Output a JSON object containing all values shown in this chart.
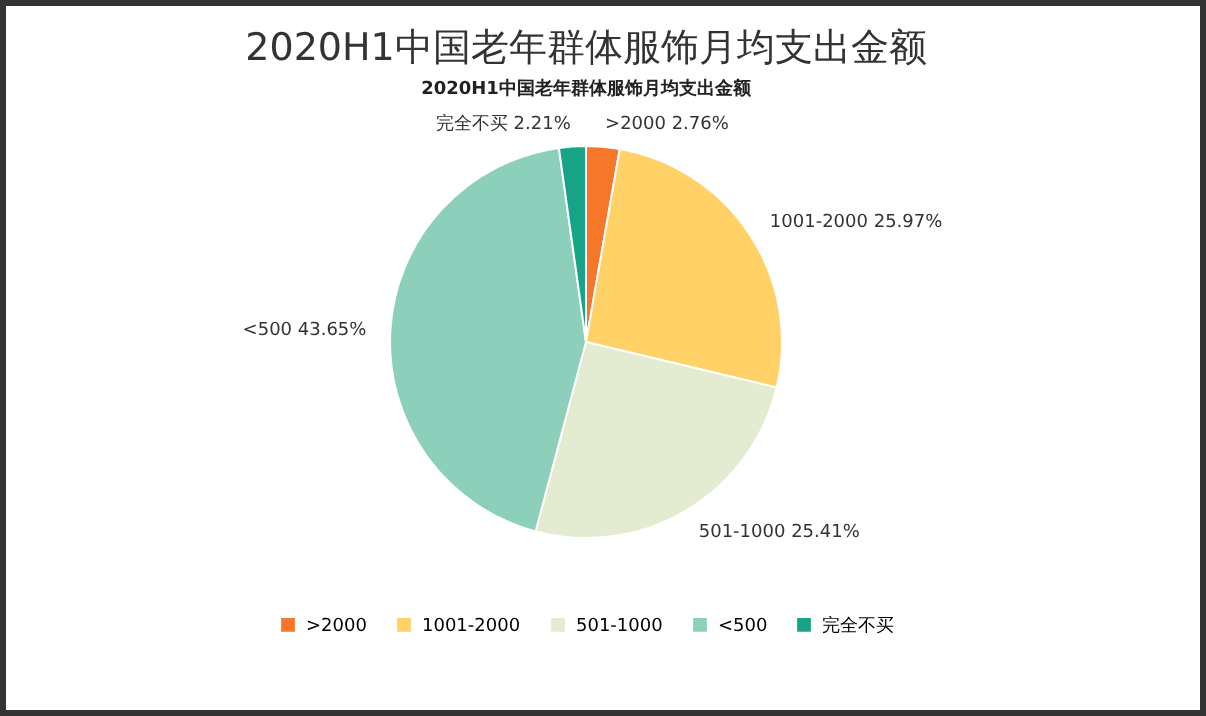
{
  "chart_data": {
    "type": "pie",
    "title": "2020H1中国老年群体服饰月均支出金额",
    "subtitle": "2020H1中国老年群体服饰月均支出金额",
    "categories": [
      ">2000",
      "1001-2000",
      "501-1000",
      "<500",
      "完全不买"
    ],
    "values": [
      2.76,
      25.97,
      25.41,
      43.65,
      2.21
    ],
    "value_labels": [
      "2.76%",
      "25.97%",
      "25.41%",
      "43.65%",
      "2.21%"
    ],
    "colors": [
      "#f7772a",
      "#ffd166",
      "#e3ebd0",
      "#8ccfbb",
      "#17a386"
    ],
    "legend": "bottom"
  }
}
